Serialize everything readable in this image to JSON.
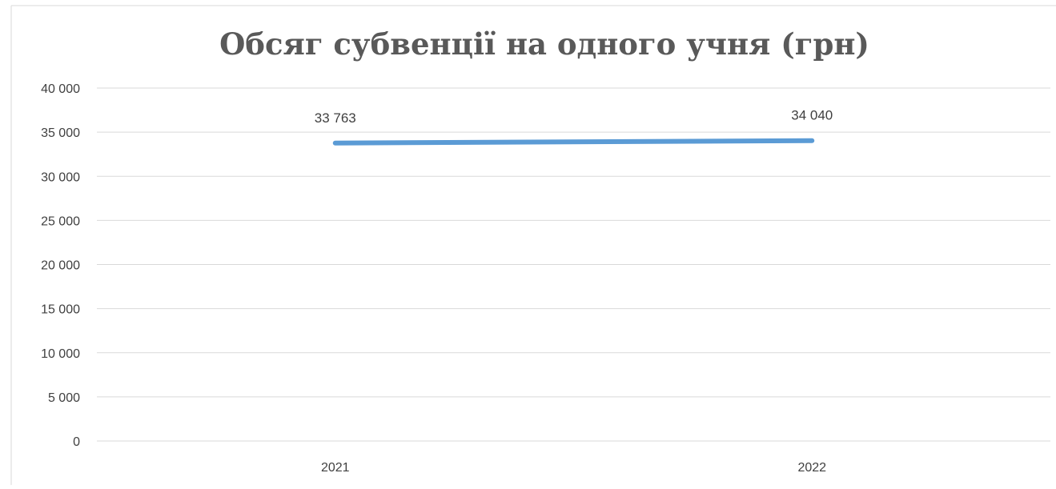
{
  "chart_data": {
    "type": "line",
    "title": "Обсяг субвенції на одного учня (грн)",
    "xlabel": "",
    "ylabel": "",
    "categories": [
      "2021",
      "2022"
    ],
    "series": [
      {
        "values": [
          33763,
          34040
        ],
        "data_labels": [
          "33 763",
          "34 040"
        ],
        "color": "#5b9bd5"
      }
    ],
    "ylim": [
      0,
      40000
    ],
    "yticks": [
      {
        "value": 0,
        "label": "0"
      },
      {
        "value": 5000,
        "label": "5 000"
      },
      {
        "value": 10000,
        "label": "10 000"
      },
      {
        "value": 15000,
        "label": "15 000"
      },
      {
        "value": 20000,
        "label": "20 000"
      },
      {
        "value": 25000,
        "label": "25 000"
      },
      {
        "value": 30000,
        "label": "30 000"
      },
      {
        "value": 35000,
        "label": "35 000"
      },
      {
        "value": 40000,
        "label": "40 000"
      }
    ],
    "grid": true,
    "legend": "none"
  }
}
